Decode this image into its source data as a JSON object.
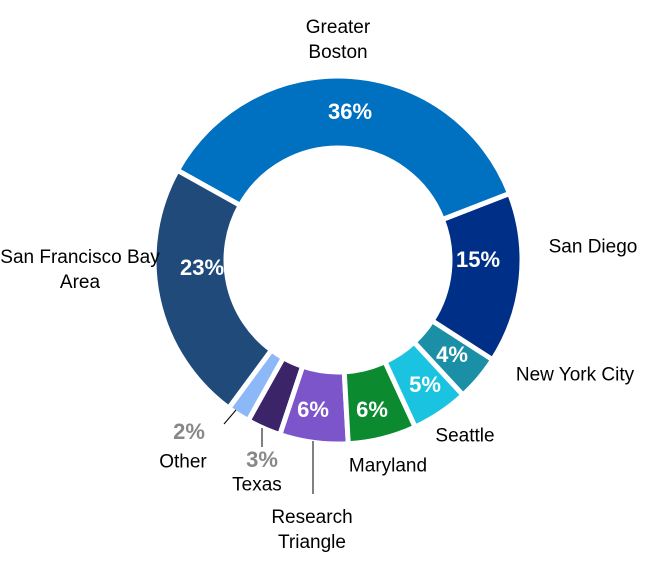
{
  "chart_data": {
    "type": "donut",
    "categories": [
      "Greater Boston",
      "San Diego",
      "New York City",
      "Seattle",
      "Maryland",
      "Research Triangle",
      "Texas",
      "Other",
      "San Francisco Bay Area"
    ],
    "values": [
      36,
      15,
      4,
      5,
      6,
      6,
      3,
      2,
      23
    ],
    "value_labels": [
      "36%",
      "15%",
      "4%",
      "5%",
      "6%",
      "6%",
      "3%",
      "2%",
      "23%"
    ],
    "colors": [
      "#0070c0",
      "#002f87",
      "#1a8fa6",
      "#1ac3e0",
      "#0b8a30",
      "#7b55c9",
      "#3b2468",
      "#8cb8f8",
      "#1f4a7a"
    ]
  }
}
